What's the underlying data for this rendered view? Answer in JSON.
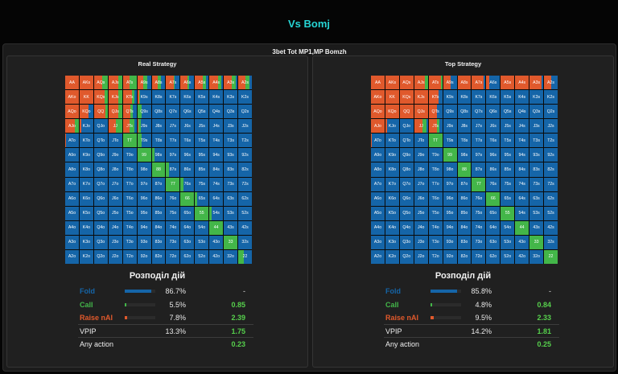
{
  "title": "Vs Bomj",
  "subtitle": "3bet Tot MP1,MP Bomzh",
  "colors": {
    "fold": "#1565a8",
    "call": "#43b649",
    "raise": "#e0592c",
    "accent": "#26d4d4"
  },
  "ranks": [
    "A",
    "K",
    "Q",
    "J",
    "T",
    "9",
    "8",
    "7",
    "6",
    "5",
    "4",
    "3",
    "2"
  ],
  "panels": [
    {
      "title": "Real Strategy",
      "dist_title": "Розподіл дій",
      "stats": [
        {
          "name": "Fold",
          "percent": "86.7%",
          "ev": "-",
          "color": "#1565a8",
          "fill": 0.867
        },
        {
          "name": "Call",
          "percent": "5.5%",
          "ev": "0.85",
          "color": "#43b649",
          "fill": 0.055
        },
        {
          "name": "Raise nAI",
          "percent": "7.8%",
          "ev": "2.39",
          "color": "#e0592c",
          "fill": 0.078
        },
        {
          "name": "VPIP",
          "percent": "13.3%",
          "ev": "1.75"
        },
        {
          "name": "Any action",
          "percent": "",
          "ev": "0.23"
        }
      ],
      "mix": {
        "AA": [
          0,
          100,
          0
        ],
        "AKs": [
          0,
          100,
          0
        ],
        "AQs": [
          0,
          60,
          40
        ],
        "AJs": [
          0,
          75,
          25
        ],
        "ATs": [
          0,
          50,
          50
        ],
        "A9s": [
          25,
          45,
          30
        ],
        "A8s": [
          30,
          45,
          25
        ],
        "A7s": [
          35,
          55,
          10
        ],
        "A6s": [
          35,
          50,
          15
        ],
        "A5s": [
          20,
          55,
          25
        ],
        "A4s": [
          15,
          65,
          20
        ],
        "A3s": [
          15,
          60,
          25
        ],
        "A2s": [
          20,
          55,
          25
        ],
        "AKo": [
          0,
          100,
          0
        ],
        "KK": [
          0,
          100,
          0
        ],
        "KQs": [
          0,
          80,
          20
        ],
        "KJs": [
          0,
          75,
          25
        ],
        "KTs": [
          15,
          65,
          20
        ],
        "K9s": [
          80,
          15,
          5
        ],
        "AQo": [
          0,
          100,
          0
        ],
        "KQo": [
          35,
          65,
          0
        ],
        "QQ": [
          0,
          85,
          15
        ],
        "QJs": [
          0,
          75,
          25
        ],
        "QTs": [
          30,
          55,
          15
        ],
        "Q9s": [
          70,
          0,
          30
        ],
        "AJo": [
          0,
          70,
          30
        ],
        "KJo": [
          90,
          10,
          0
        ],
        "JJ": [
          0,
          55,
          45
        ],
        "JTs": [
          15,
          50,
          35
        ],
        "J9s": [
          75,
          10,
          15
        ],
        "ATo": [
          92,
          8,
          0
        ],
        "TT": [
          0,
          0,
          100
        ],
        "T9s": [
          70,
          0,
          30
        ],
        "99": [
          0,
          0,
          100
        ],
        "98s": [
          80,
          0,
          20
        ],
        "88": [
          0,
          0,
          100
        ],
        "87s": [
          80,
          0,
          20
        ],
        "77": [
          0,
          0,
          100
        ],
        "76s": [
          80,
          0,
          20
        ],
        "66": [
          0,
          0,
          100
        ],
        "65s": [
          85,
          0,
          15
        ],
        "55": [
          0,
          0,
          100
        ],
        "54s": [
          85,
          0,
          15
        ],
        "44": [
          0,
          0,
          100
        ],
        "33": [
          0,
          0,
          100
        ],
        "22": [
          60,
          0,
          40
        ]
      }
    },
    {
      "title": "Top Strategy",
      "dist_title": "Розподіл дій",
      "stats": [
        {
          "name": "Fold",
          "percent": "85.8%",
          "ev": "-",
          "color": "#1565a8",
          "fill": 0.858
        },
        {
          "name": "Call",
          "percent": "4.8%",
          "ev": "0.84",
          "color": "#43b649",
          "fill": 0.048
        },
        {
          "name": "Raise nAI",
          "percent": "9.5%",
          "ev": "2.33",
          "color": "#e0592c",
          "fill": 0.095
        },
        {
          "name": "VPIP",
          "percent": "14.2%",
          "ev": "1.81"
        },
        {
          "name": "Any action",
          "percent": "",
          "ev": "0.25"
        }
      ],
      "mix": {
        "AA": [
          0,
          100,
          0
        ],
        "AKs": [
          0,
          100,
          0
        ],
        "AQs": [
          0,
          100,
          0
        ],
        "AJs": [
          0,
          80,
          20
        ],
        "ATs": [
          0,
          90,
          10
        ],
        "A9s": [
          45,
          55,
          0
        ],
        "A8s": [
          0,
          100,
          0
        ],
        "A7s": [
          15,
          85,
          0
        ],
        "A6s": [
          80,
          20,
          0
        ],
        "A5s": [
          0,
          100,
          0
        ],
        "A4s": [
          0,
          100,
          0
        ],
        "A3s": [
          15,
          85,
          0
        ],
        "A2s": [
          45,
          55,
          0
        ],
        "AKo": [
          0,
          100,
          0
        ],
        "KK": [
          0,
          100,
          0
        ],
        "KQs": [
          0,
          100,
          0
        ],
        "KJs": [
          0,
          100,
          0
        ],
        "KTs": [
          30,
          70,
          0
        ],
        "AQo": [
          0,
          100,
          0
        ],
        "KQo": [
          0,
          100,
          0
        ],
        "QQ": [
          0,
          100,
          0
        ],
        "QJs": [
          0,
          100,
          0
        ],
        "QTs": [
          40,
          60,
          0
        ],
        "AJo": [
          0,
          100,
          0
        ],
        "KJo": [
          88,
          12,
          0
        ],
        "JJ": [
          10,
          60,
          30
        ],
        "JTs": [
          20,
          60,
          20
        ],
        "ATo": [
          95,
          5,
          0
        ],
        "TT": [
          0,
          0,
          100
        ],
        "99": [
          0,
          0,
          100
        ],
        "88": [
          0,
          0,
          100
        ],
        "77": [
          0,
          0,
          100
        ],
        "66": [
          0,
          0,
          100
        ],
        "55": [
          0,
          0,
          100
        ],
        "44": [
          0,
          0,
          100
        ],
        "33": [
          0,
          0,
          100
        ],
        "22": [
          0,
          0,
          100
        ]
      }
    }
  ]
}
